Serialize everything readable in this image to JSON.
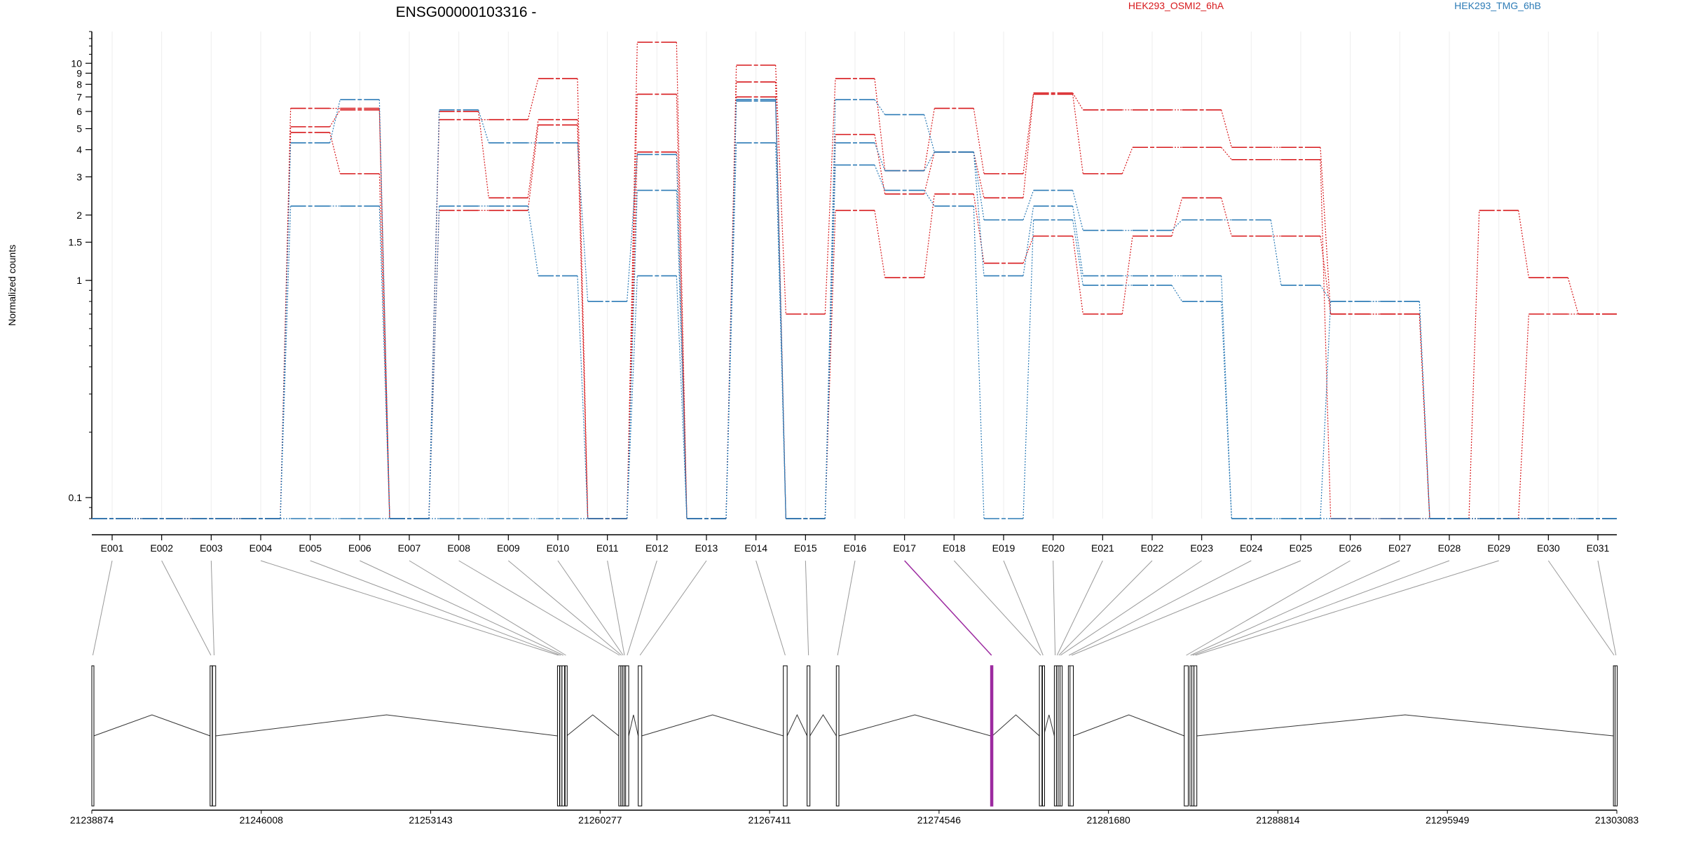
{
  "chart_data": {
    "type": "line",
    "title": "ENSG00000103316 -",
    "xlabel": "",
    "ylabel": "Normalized counts",
    "yscale": "log",
    "ylim": [
      0.08,
      14
    ],
    "y_ticks": [
      {
        "v": 0.1,
        "label": "0.1"
      },
      {
        "v": 1,
        "label": "1"
      },
      {
        "v": 1.5,
        "label": "1.5"
      },
      {
        "v": 2,
        "label": "2"
      },
      {
        "v": 3,
        "label": "3"
      },
      {
        "v": 4,
        "label": "4"
      },
      {
        "v": 5,
        "label": "5"
      },
      {
        "v": 6,
        "label": "6"
      },
      {
        "v": 7,
        "label": "7"
      },
      {
        "v": 8,
        "label": "8"
      },
      {
        "v": 9,
        "label": "9"
      },
      {
        "v": 10,
        "label": "10"
      }
    ],
    "categories": [
      "E001",
      "E002",
      "E003",
      "E004",
      "E005",
      "E006",
      "E007",
      "E008",
      "E009",
      "E010",
      "E011",
      "E012",
      "E013",
      "E014",
      "E015",
      "E016",
      "E017",
      "E018",
      "E019",
      "E020",
      "E021",
      "E022",
      "E023",
      "E024",
      "E025",
      "E026",
      "E027",
      "E028",
      "E029",
      "E030",
      "E031"
    ],
    "legend": [
      {
        "label": "HEK293_OSMI2_6hA",
        "color": "#d7191c"
      },
      {
        "label": "HEK293_TMG_6hB",
        "color": "#2c7bb6"
      }
    ],
    "series": [
      {
        "group": "HEK293_OSMI2_6hA",
        "color": "#d7191c",
        "values": [
          0.08,
          0.08,
          0.08,
          0.08,
          6.2,
          6.2,
          0.08,
          5.5,
          5.5,
          8.5,
          0.08,
          12.5,
          0.08,
          9.8,
          0.7,
          8.5,
          3.2,
          6.2,
          3.1,
          7.3,
          6.1,
          6.1,
          6.1,
          4.1,
          4.1,
          0.7,
          0.7,
          0.08,
          2.1,
          1.03,
          0.7
        ]
      },
      {
        "group": "HEK293_OSMI2_6hA",
        "color": "#d7191c",
        "values": [
          0.08,
          0.08,
          0.08,
          0.08,
          5.1,
          6.1,
          0.08,
          6.0,
          2.4,
          5.5,
          0.08,
          7.2,
          0.08,
          8.2,
          0.08,
          4.7,
          2.5,
          3.9,
          2.4,
          7.2,
          3.1,
          4.1,
          4.1,
          3.6,
          3.6,
          0.08,
          0.08,
          0.08,
          0.08,
          0.7,
          0.7
        ]
      },
      {
        "group": "HEK293_OSMI2_6hA",
        "color": "#d7191c",
        "values": [
          0.08,
          0.08,
          0.08,
          0.08,
          4.8,
          3.1,
          0.08,
          2.1,
          2.1,
          5.2,
          0.08,
          3.9,
          0.08,
          7.0,
          0.08,
          2.1,
          1.03,
          2.5,
          1.2,
          1.6,
          0.7,
          1.6,
          2.4,
          1.6,
          1.6,
          0.7,
          0.7,
          0.08,
          0.08,
          0.08,
          0.08
        ]
      },
      {
        "group": "HEK293_TMG_6hB",
        "color": "#2c7bb6",
        "values": [
          0.08,
          0.08,
          0.08,
          0.08,
          4.3,
          6.8,
          0.08,
          6.1,
          4.3,
          4.3,
          0.8,
          3.8,
          0.08,
          6.8,
          0.08,
          6.8,
          5.8,
          3.9,
          1.9,
          2.6,
          1.7,
          1.7,
          1.9,
          1.9,
          0.95,
          0.8,
          0.8,
          0.08,
          0.08,
          0.08,
          0.08
        ]
      },
      {
        "group": "HEK293_TMG_6hB",
        "color": "#2c7bb6",
        "values": [
          0.08,
          0.08,
          0.08,
          0.08,
          2.2,
          2.2,
          0.08,
          2.2,
          2.2,
          1.05,
          0.08,
          2.6,
          0.08,
          6.7,
          0.08,
          4.3,
          3.2,
          3.9,
          1.05,
          2.2,
          1.05,
          1.05,
          1.05,
          0.08,
          0.08,
          0.08,
          0.08,
          0.08,
          0.08,
          0.08,
          0.08
        ]
      },
      {
        "group": "HEK293_TMG_6hB",
        "color": "#2c7bb6",
        "values": [
          0.08,
          0.08,
          0.08,
          0.08,
          0.08,
          0.08,
          0.08,
          0.08,
          0.08,
          0.08,
          0.08,
          1.05,
          0.08,
          4.3,
          0.08,
          3.4,
          2.6,
          2.2,
          0.08,
          1.9,
          0.95,
          0.95,
          0.8,
          0.08,
          0.08,
          0.8,
          0.8,
          0.08,
          0.08,
          0.08,
          0.08
        ]
      }
    ],
    "highlighted_exon": "E017",
    "highlight_color": "#9c2aa0",
    "genome_axis": {
      "range": [
        21238874,
        21303083
      ],
      "ticks": [
        "21238874",
        "21246008",
        "21253143",
        "21260277",
        "21267411",
        "21274546",
        "21281680",
        "21288814",
        "21295949",
        "21303083"
      ]
    },
    "exon_blocks": [
      {
        "id": "E001",
        "start": 21238874,
        "end": 21238960
      },
      {
        "id": "E002",
        "start": 21243855,
        "end": 21243920
      },
      {
        "id": "E003",
        "start": 21243955,
        "end": 21244090
      },
      {
        "id": "E004",
        "start": 21258480,
        "end": 21258560
      },
      {
        "id": "E005",
        "start": 21258580,
        "end": 21258650
      },
      {
        "id": "E006",
        "start": 21258670,
        "end": 21258780
      },
      {
        "id": "E007",
        "start": 21258800,
        "end": 21258870
      },
      {
        "id": "E008",
        "start": 21261060,
        "end": 21261130
      },
      {
        "id": "E009",
        "start": 21261150,
        "end": 21261200
      },
      {
        "id": "E010",
        "start": 21261220,
        "end": 21261270
      },
      {
        "id": "E011",
        "start": 21261290,
        "end": 21261310
      },
      {
        "id": "E012",
        "start": 21261350,
        "end": 21261480
      },
      {
        "id": "E013",
        "start": 21261880,
        "end": 21262030
      },
      {
        "id": "E014",
        "start": 21267990,
        "end": 21268150
      },
      {
        "id": "E015",
        "start": 21268990,
        "end": 21269110
      },
      {
        "id": "E016",
        "start": 21270220,
        "end": 21270330
      },
      {
        "id": "E017",
        "start": 21276720,
        "end": 21276790
      },
      {
        "id": "E018",
        "start": 21278770,
        "end": 21278880
      },
      {
        "id": "E019",
        "start": 21278900,
        "end": 21278950
      },
      {
        "id": "E020",
        "start": 21279400,
        "end": 21279470
      },
      {
        "id": "E021",
        "start": 21279490,
        "end": 21279540
      },
      {
        "id": "E022",
        "start": 21279560,
        "end": 21279620
      },
      {
        "id": "E023",
        "start": 21279640,
        "end": 21279680
      },
      {
        "id": "E024",
        "start": 21279990,
        "end": 21280040
      },
      {
        "id": "E025",
        "start": 21280060,
        "end": 21280200
      },
      {
        "id": "E026",
        "start": 21284870,
        "end": 21285040
      },
      {
        "id": "E027",
        "start": 21285110,
        "end": 21285160
      },
      {
        "id": "E028",
        "start": 21285190,
        "end": 21285260
      },
      {
        "id": "E029",
        "start": 21285280,
        "end": 21285400
      },
      {
        "id": "E030",
        "start": 21302940,
        "end": 21303000
      },
      {
        "id": "E031",
        "start": 21303010,
        "end": 21303083
      }
    ]
  }
}
